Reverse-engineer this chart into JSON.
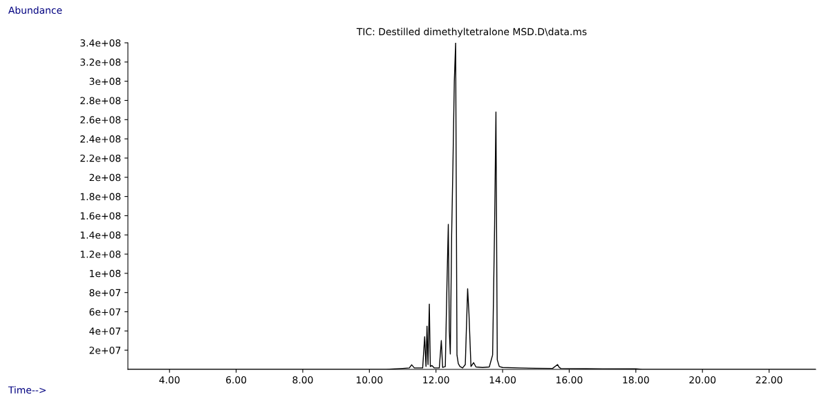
{
  "chart_data": {
    "type": "line",
    "title": "TIC: Destilled dimethyltetralone MSD.D\\data.ms",
    "ylabel": "Abundance",
    "xlabel": "Time-->",
    "series": [
      {
        "color": "#000000",
        "x": [
          2.75,
          10.5,
          11.0,
          11.2,
          11.27,
          11.35,
          11.6,
          11.66,
          11.7,
          11.73,
          11.76,
          11.8,
          11.83,
          11.88,
          11.95,
          12.1,
          12.16,
          12.2,
          12.28,
          12.33,
          12.37,
          12.4,
          12.43,
          12.47,
          12.51,
          12.55,
          12.59,
          12.63,
          12.67,
          12.72,
          12.8,
          12.88,
          12.95,
          12.99,
          13.05,
          13.13,
          13.2,
          13.4,
          13.6,
          13.7,
          13.76,
          13.8,
          13.84,
          13.9,
          14.0,
          14.5,
          15.0,
          15.5,
          15.65,
          15.7,
          15.75,
          16.0,
          16.5,
          17.0,
          18.0,
          18.2,
          23.4
        ],
        "values": [
          0,
          0,
          1000000,
          1500000,
          4800000,
          1500000,
          1500000,
          34000000,
          3000000,
          45000000,
          5000000,
          68000000,
          3000000,
          4000000,
          1500000,
          1500000,
          30000000,
          2000000,
          3000000,
          90000000,
          151000000,
          40000000,
          16000000,
          140000000,
          215000000,
          300000000,
          340000000,
          15000000,
          6000000,
          3000000,
          1500000,
          5000000,
          84000000,
          58000000,
          3000000,
          7000000,
          2500000,
          2000000,
          2500000,
          15000000,
          150000000,
          268000000,
          10000000,
          3000000,
          2000000,
          1500000,
          1200000,
          1000000,
          5000000,
          2000000,
          1000000,
          800000,
          700000,
          600000,
          500000,
          0,
          0
        ]
      }
    ],
    "xlim": [
      2.75,
      23.4
    ],
    "ylim": [
      0,
      340000000
    ],
    "xticks": [
      {
        "value": 4,
        "label": "4.00"
      },
      {
        "value": 6,
        "label": "6.00"
      },
      {
        "value": 8,
        "label": "8.00"
      },
      {
        "value": 10,
        "label": "10.00"
      },
      {
        "value": 12,
        "label": "12.00"
      },
      {
        "value": 14,
        "label": "14.00"
      },
      {
        "value": 16,
        "label": "16.00"
      },
      {
        "value": 18,
        "label": "18.00"
      },
      {
        "value": 20,
        "label": "20.00"
      },
      {
        "value": 22,
        "label": "22.00"
      }
    ],
    "yticks": [
      {
        "value": 20000000,
        "label": "2e+07"
      },
      {
        "value": 40000000,
        "label": "4e+07"
      },
      {
        "value": 60000000,
        "label": "6e+07"
      },
      {
        "value": 80000000,
        "label": "8e+07"
      },
      {
        "value": 100000000,
        "label": "1e+08"
      },
      {
        "value": 120000000,
        "label": "1.2e+08"
      },
      {
        "value": 140000000,
        "label": "1.4e+08"
      },
      {
        "value": 160000000,
        "label": "1.6e+08"
      },
      {
        "value": 180000000,
        "label": "1.8e+08"
      },
      {
        "value": 200000000,
        "label": "2e+08"
      },
      {
        "value": 220000000,
        "label": "2.2e+08"
      },
      {
        "value": 240000000,
        "label": "2.4e+08"
      },
      {
        "value": 260000000,
        "label": "2.6e+08"
      },
      {
        "value": 280000000,
        "label": "2.8e+08"
      },
      {
        "value": 300000000,
        "label": "3e+08"
      },
      {
        "value": 320000000,
        "label": "3.2e+08"
      },
      {
        "value": 340000000,
        "label": "3.4e+08"
      }
    ],
    "grid": false,
    "legend": false
  }
}
